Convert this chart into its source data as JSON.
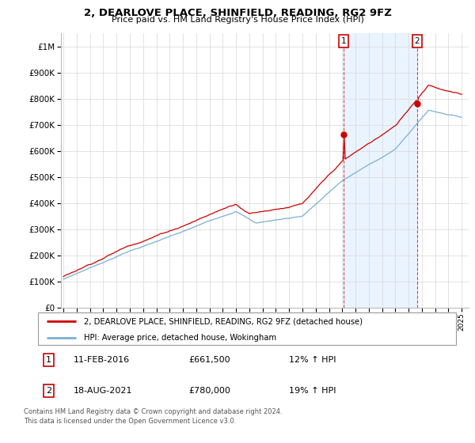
{
  "title": "2, DEARLOVE PLACE, SHINFIELD, READING, RG2 9FZ",
  "subtitle": "Price paid vs. HM Land Registry's House Price Index (HPI)",
  "legend_line1": "2, DEARLOVE PLACE, SHINFIELD, READING, RG2 9FZ (detached house)",
  "legend_line2": "HPI: Average price, detached house, Wokingham",
  "footnote": "Contains HM Land Registry data © Crown copyright and database right 2024.\nThis data is licensed under the Open Government Licence v3.0.",
  "transaction1_date": "11-FEB-2016",
  "transaction1_price": "£661,500",
  "transaction1_hpi": "12% ↑ HPI",
  "transaction2_date": "18-AUG-2021",
  "transaction2_price": "£780,000",
  "transaction2_hpi": "19% ↑ HPI",
  "hpi_color": "#7bafd4",
  "hpi_fill_color": "#ddeeff",
  "price_color": "#cc0000",
  "marker1_x": 2016.11,
  "marker1_y": 661500,
  "marker2_x": 2021.63,
  "marker2_y": 780000,
  "ylim_min": 0,
  "ylim_max": 1050000,
  "xlim_min": 1994.8,
  "xlim_max": 2025.5,
  "yticks": [
    0,
    100000,
    200000,
    300000,
    400000,
    500000,
    600000,
    700000,
    800000,
    900000,
    1000000
  ],
  "ytick_labels": [
    "£0",
    "£100K",
    "£200K",
    "£300K",
    "£400K",
    "£500K",
    "£600K",
    "£700K",
    "£800K",
    "£900K",
    "£1M"
  ],
  "xticks": [
    1995,
    1996,
    1997,
    1998,
    1999,
    2000,
    2001,
    2002,
    2003,
    2004,
    2005,
    2006,
    2007,
    2008,
    2009,
    2010,
    2011,
    2012,
    2013,
    2014,
    2015,
    2016,
    2017,
    2018,
    2019,
    2020,
    2021,
    2022,
    2023,
    2024,
    2025
  ]
}
